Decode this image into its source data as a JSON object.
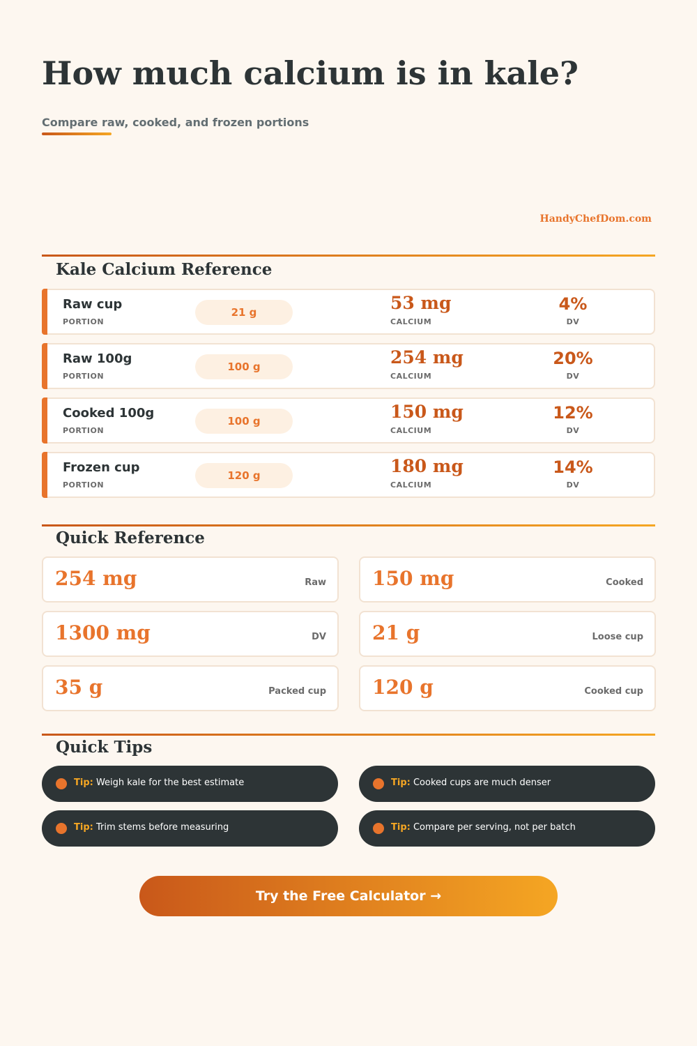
{
  "header": {
    "title": "How much calcium is in kale?",
    "subtitle": "Compare raw, cooked, and frozen portions",
    "brand": "HandyChefDom.com"
  },
  "reference": {
    "title": "Kale Calcium Reference",
    "portion_label": "PORTION",
    "calcium_label": "CALCIUM",
    "dv_label": "DV",
    "rows": [
      {
        "portion": "Raw cup",
        "grams": "21 g",
        "calcium": "53 mg",
        "dv": "4%"
      },
      {
        "portion": "Raw 100g",
        "grams": "100 g",
        "calcium": "254 mg",
        "dv": "20%"
      },
      {
        "portion": "Cooked 100g",
        "grams": "100 g",
        "calcium": "150 mg",
        "dv": "12%"
      },
      {
        "portion": "Frozen cup",
        "grams": "120 g",
        "calcium": "180 mg",
        "dv": "14%"
      }
    ]
  },
  "quick_reference": {
    "title": "Quick Reference",
    "cards": [
      {
        "value": "254 mg",
        "label": "Raw"
      },
      {
        "value": "150 mg",
        "label": "Cooked"
      },
      {
        "value": "1300 mg",
        "label": "DV"
      },
      {
        "value": "21 g",
        "label": "Loose cup"
      },
      {
        "value": "35 g",
        "label": "Packed cup"
      },
      {
        "value": "120 g",
        "label": "Cooked cup"
      }
    ]
  },
  "tips": {
    "title": "Quick Tips",
    "prefix": "Tip:",
    "items": [
      "Weigh kale for the best estimate",
      "Cooked cups are much denser",
      "Trim stems before measuring",
      "Compare per serving, not per batch"
    ]
  },
  "cta": {
    "label": "Try the Free Calculator →"
  },
  "colors": {
    "accent": "#e8742c",
    "accent_dark": "#c9581a",
    "accent_light": "#f5a623",
    "dark": "#2d3436",
    "background": "#fdf7f0"
  }
}
